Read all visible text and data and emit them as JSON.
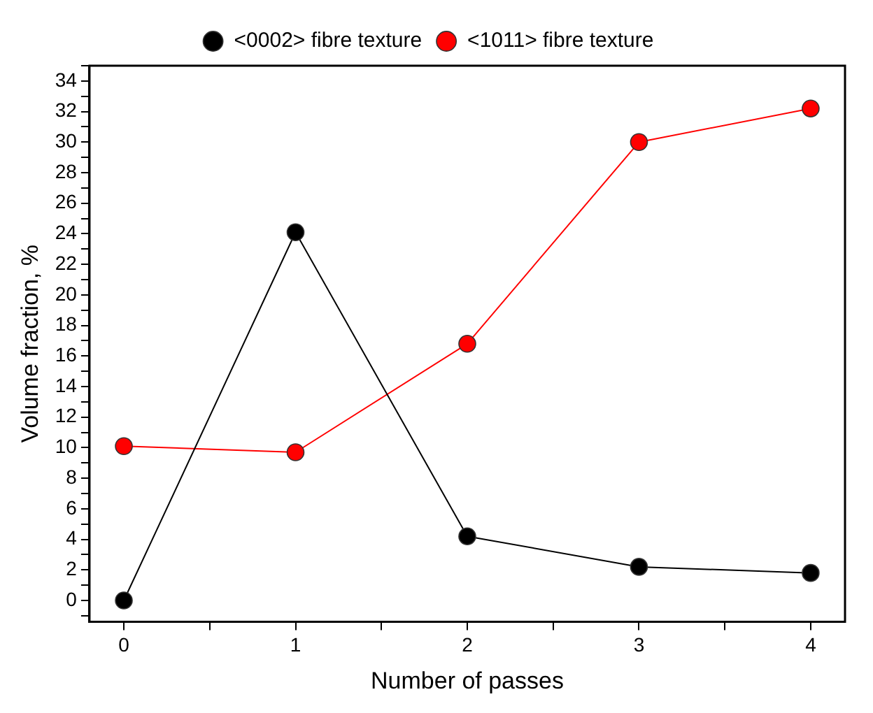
{
  "chart_data": {
    "type": "line",
    "xlabel": "Number of passes",
    "ylabel": "Volume fraction, %",
    "x": [
      0,
      1,
      2,
      3,
      4
    ],
    "series": [
      {
        "name": "<0002> fibre texture",
        "color": "#000000",
        "values": [
          0,
          24.1,
          4.2,
          2.2,
          1.8
        ]
      },
      {
        "name": "<1011> fibre texture",
        "color": "#ff0000",
        "values": [
          10.1,
          9.7,
          16.8,
          30.0,
          32.2
        ]
      }
    ],
    "xlim": [
      -0.2,
      4.2
    ],
    "xticks": [
      0,
      {
        "value": 0.5,
        "label": null
      },
      1,
      {
        "value": 1.5,
        "label": null
      },
      2,
      {
        "value": 2.5,
        "label": null
      },
      3,
      {
        "value": 3.5,
        "label": null
      },
      4
    ],
    "ylim": [
      -1.4,
      35
    ],
    "yticks": [
      {
        "value": -1,
        "label": null
      },
      0,
      {
        "value": 1,
        "label": null
      },
      2,
      {
        "value": 3,
        "label": null
      },
      4,
      {
        "value": 5,
        "label": null
      },
      6,
      {
        "value": 7,
        "label": null
      },
      8,
      {
        "value": 9,
        "label": null
      },
      10,
      {
        "value": 11,
        "label": null
      },
      12,
      {
        "value": 13,
        "label": null
      },
      14,
      {
        "value": 15,
        "label": null
      },
      16,
      {
        "value": 17,
        "label": null
      },
      18,
      {
        "value": 19,
        "label": null
      },
      20,
      {
        "value": 21,
        "label": null
      },
      22,
      {
        "value": 23,
        "label": null
      },
      24,
      {
        "value": 25,
        "label": null
      },
      26,
      {
        "value": 27,
        "label": null
      },
      28,
      {
        "value": 29,
        "label": null
      },
      30,
      {
        "value": 31,
        "label": null
      },
      32,
      {
        "value": 33,
        "label": null
      },
      34,
      {
        "value": 35,
        "label": null
      }
    ],
    "grid": false,
    "legend": "top",
    "marker": "circle",
    "line_style": "solid"
  }
}
